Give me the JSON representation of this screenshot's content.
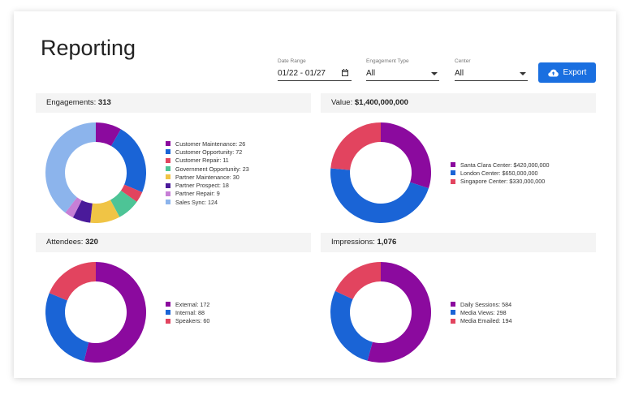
{
  "page": {
    "title": "Reporting",
    "filters": {
      "date_range": {
        "label": "Date Range",
        "value": "01/22 - 01/27"
      },
      "engagement_type": {
        "label": "Engagement Type",
        "value": "All"
      },
      "center": {
        "label": "Center",
        "value": "All"
      }
    },
    "export_label": "Export"
  },
  "panels": [
    {
      "label": "Engagements:",
      "value": "313"
    },
    {
      "label": "Value:",
      "value": "$1,400,000,000"
    },
    {
      "label": "Attendees:",
      "value": "320"
    },
    {
      "label": "Impressions:",
      "value": "1,076"
    }
  ],
  "chart_data": [
    {
      "type": "pie",
      "donut": true,
      "series": [
        {
          "values": [
            26,
            72,
            11,
            23,
            30,
            18,
            9,
            124
          ]
        }
      ],
      "categories": [
        "Customer Maintenance",
        "Customer Opportunity",
        "Customer Repair",
        "Government Opportunity",
        "Partner Maintenance",
        "Partner Prospect",
        "Partner Repair",
        "Sales Sync"
      ],
      "legend": [
        "Customer Maintenance: 26",
        "Customer Opportunity: 72",
        "Customer Repair: 11",
        "Government Opportunity: 23",
        "Partner Maintenance: 30",
        "Partner Prospect: 18",
        "Partner Repair: 9",
        "Sales Sync: 124"
      ],
      "colors": [
        "#8b0a9e",
        "#1a64d6",
        "#e2445f",
        "#4dc496",
        "#f0c445",
        "#4a1a9a",
        "#c77fd6",
        "#8cb4ec"
      ],
      "legend_position": "right"
    },
    {
      "type": "pie",
      "donut": true,
      "series": [
        {
          "values": [
            420000000,
            650000000,
            330000000
          ]
        }
      ],
      "categories": [
        "Santa Clara Center",
        "London Center",
        "Singapore Center"
      ],
      "legend": [
        "Santa Clara Center: $420,000,000",
        "London Center: $650,000,000",
        "Singapore Center: $330,000,000"
      ],
      "colors": [
        "#8b0a9e",
        "#1a64d6",
        "#e2445f"
      ],
      "legend_position": "right"
    },
    {
      "type": "pie",
      "donut": true,
      "series": [
        {
          "values": [
            172,
            88,
            60
          ]
        }
      ],
      "categories": [
        "External",
        "Internal",
        "Speakers"
      ],
      "legend": [
        "External: 172",
        "Internal: 88",
        "Speakers: 60"
      ],
      "colors": [
        "#8b0a9e",
        "#1a64d6",
        "#e2445f"
      ],
      "legend_position": "right"
    },
    {
      "type": "pie",
      "donut": true,
      "series": [
        {
          "values": [
            584,
            298,
            194
          ]
        }
      ],
      "categories": [
        "Daily Sessions",
        "Media Views",
        "Media Emailed"
      ],
      "legend": [
        "Daily Sessions: 584",
        "Media Views: 298",
        "Media Emailed: 194"
      ],
      "colors": [
        "#8b0a9e",
        "#1a64d6",
        "#e2445f"
      ],
      "legend_position": "right"
    }
  ]
}
